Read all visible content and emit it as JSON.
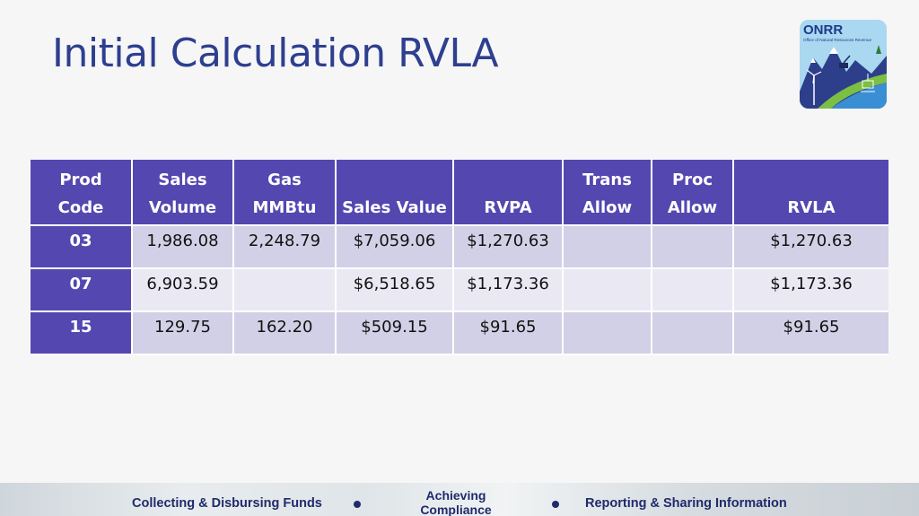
{
  "title": "Initial Calculation RVLA",
  "logo": {
    "name": "ONRR",
    "subtitle": "Office of Natural Resources Revenue"
  },
  "table": {
    "headers": [
      [
        "Prod",
        "Code"
      ],
      [
        "Sales",
        "Volume"
      ],
      [
        "Gas",
        "MMBtu"
      ],
      [
        "",
        "Sales Value"
      ],
      [
        "",
        "RVPA"
      ],
      [
        "Trans",
        "Allow"
      ],
      [
        "Proc",
        "Allow"
      ],
      [
        "",
        "RVLA"
      ]
    ],
    "rows": [
      [
        "03",
        "1,986.08",
        "2,248.79",
        "$7,059.06",
        "$1,270.63",
        "",
        "",
        "$1,270.63"
      ],
      [
        "07",
        "6,903.59",
        "",
        "$6,518.65",
        "$1,173.36",
        "",
        "",
        "$1,173.36"
      ],
      [
        "15",
        "129.75",
        "162.20",
        "$509.15",
        "$91.65",
        "",
        "",
        "$91.65"
      ]
    ]
  },
  "footer": {
    "left": "Collecting & Disbursing Funds",
    "center_line1": "Achieving",
    "center_line2": "Compliance",
    "right": "Reporting & Sharing Information"
  },
  "colors": {
    "title": "#2e3f8f",
    "header_bg": "#5547b0",
    "row_dark": "#d2d0e6",
    "row_light": "#e9e8f3",
    "footer_text": "#1f2b6b"
  }
}
